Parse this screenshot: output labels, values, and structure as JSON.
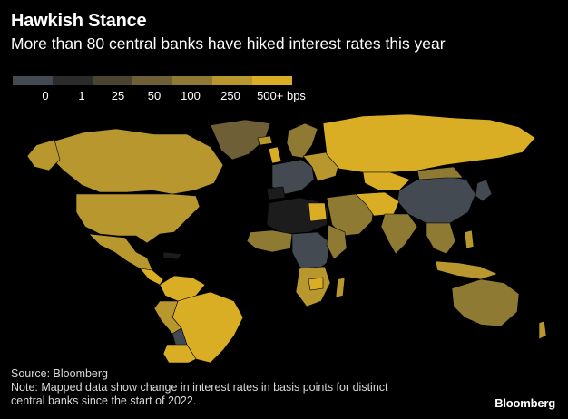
{
  "header": {
    "title": "Hawkish Stance",
    "subtitle": "More than 80 central banks have hiked interest rates this year"
  },
  "legend": {
    "bins": [
      {
        "color": "#434a52"
      },
      {
        "color": "#2b2b2b"
      },
      {
        "color": "#4a4332"
      },
      {
        "color": "#6e5f36"
      },
      {
        "color": "#8f7a33"
      },
      {
        "color": "#b8972f"
      },
      {
        "color": "#d9ae24"
      }
    ],
    "ticks": [
      "0",
      "1",
      "25",
      "50",
      "100",
      "250",
      "500+ bps"
    ]
  },
  "map_colors": {
    "background": "#000000",
    "zero": "#434a52",
    "dark_gold": "#6e5f36",
    "mid_gold": "#8f7a33",
    "gold": "#b8972f",
    "bright_gold": "#d9ae24",
    "no_data": "#1c1c1c"
  },
  "footer": {
    "source": "Source: Bloomberg",
    "note_line1": "Note: Mapped data show change in interest rates in basis points for distinct",
    "note_line2": "central banks since the start of 2022.",
    "logo": "Bloomberg"
  }
}
